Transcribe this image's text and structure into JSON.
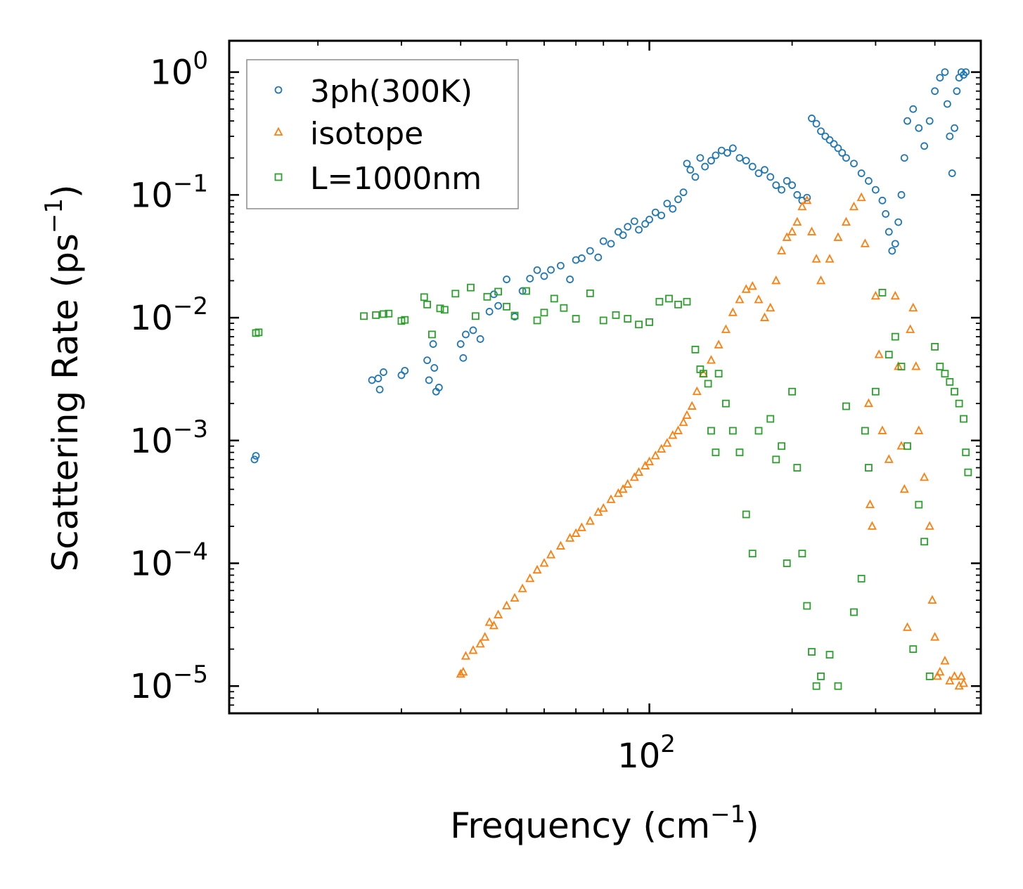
{
  "chart_data": {
    "type": "scatter",
    "title": "",
    "xlabel": "Frequency (cm",
    "xlabel_sup": "−1",
    "xlabel_close": ")",
    "ylabel": "Scattering Rate (ps",
    "ylabel_sup": "−1",
    "ylabel_close": ")",
    "xscale": "log",
    "yscale": "log",
    "xlim": [
      13,
      500
    ],
    "ylim": [
      6e-06,
      1.8
    ],
    "grid": false,
    "legend_position": "top-left",
    "x_ticks": [
      {
        "value": 100,
        "base": "10",
        "exp": "2"
      }
    ],
    "y_ticks": [
      {
        "value": 1,
        "base": "10",
        "exp": "0"
      },
      {
        "value": 0.1,
        "base": "10",
        "exp": "−1"
      },
      {
        "value": 0.01,
        "base": "10",
        "exp": "−2"
      },
      {
        "value": 0.001,
        "base": "10",
        "exp": "−3"
      },
      {
        "value": 0.0001,
        "base": "10",
        "exp": "−4"
      },
      {
        "value": 1e-05,
        "base": "10",
        "exp": "−5"
      }
    ],
    "series": [
      {
        "name": "3ph(300K)",
        "marker": "circle",
        "color": "#1f77b4",
        "points": [
          [
            14.7,
            0.0007
          ],
          [
            14.8,
            0.00075
          ],
          [
            26.0,
            0.0031
          ],
          [
            26.8,
            0.0032
          ],
          [
            27.0,
            0.0026
          ],
          [
            27.5,
            0.0036
          ],
          [
            30.0,
            0.0034
          ],
          [
            30.5,
            0.0037
          ],
          [
            34.0,
            0.0045
          ],
          [
            34.3,
            0.0031
          ],
          [
            35.0,
            0.0061
          ],
          [
            35.2,
            0.0039
          ],
          [
            35.5,
            0.0025
          ],
          [
            36.0,
            0.0027
          ],
          [
            40.0,
            0.0061
          ],
          [
            40.5,
            0.0047
          ],
          [
            41.0,
            0.0073
          ],
          [
            42.5,
            0.0079
          ],
          [
            44.0,
            0.0067
          ],
          [
            46.0,
            0.0112
          ],
          [
            47.0,
            0.0155
          ],
          [
            48.0,
            0.0125
          ],
          [
            50.0,
            0.0205
          ],
          [
            52.0,
            0.0102
          ],
          [
            54.0,
            0.0165
          ],
          [
            56.0,
            0.0208
          ],
          [
            58.0,
            0.0244
          ],
          [
            60.0,
            0.0218
          ],
          [
            62.0,
            0.0245
          ],
          [
            65.0,
            0.0265
          ],
          [
            68.0,
            0.0205
          ],
          [
            70.0,
            0.0295
          ],
          [
            72.0,
            0.0305
          ],
          [
            75.0,
            0.035
          ],
          [
            78.0,
            0.031
          ],
          [
            80.0,
            0.042
          ],
          [
            83.0,
            0.04
          ],
          [
            86.0,
            0.05
          ],
          [
            88.0,
            0.047
          ],
          [
            90.0,
            0.055
          ],
          [
            93.0,
            0.061
          ],
          [
            95.0,
            0.052
          ],
          [
            98.0,
            0.058
          ],
          [
            100.0,
            0.063
          ],
          [
            103.0,
            0.072
          ],
          [
            106.0,
            0.068
          ],
          [
            109.0,
            0.085
          ],
          [
            112.0,
            0.077
          ],
          [
            115.0,
            0.092
          ],
          [
            118.0,
            0.105
          ],
          [
            120.0,
            0.18
          ],
          [
            122.0,
            0.16
          ],
          [
            125.0,
            0.14
          ],
          [
            128.0,
            0.2
          ],
          [
            131.0,
            0.17
          ],
          [
            135.0,
            0.19
          ],
          [
            138.0,
            0.21
          ],
          [
            142.0,
            0.23
          ],
          [
            146.0,
            0.22
          ],
          [
            150.0,
            0.24
          ],
          [
            155.0,
            0.2
          ],
          [
            160.0,
            0.19
          ],
          [
            165.0,
            0.17
          ],
          [
            170.0,
            0.15
          ],
          [
            175.0,
            0.16
          ],
          [
            180.0,
            0.14
          ],
          [
            185.0,
            0.12
          ],
          [
            190.0,
            0.11
          ],
          [
            195.0,
            0.13
          ],
          [
            200.0,
            0.12
          ],
          [
            205.0,
            0.1
          ],
          [
            210.0,
            0.09
          ],
          [
            215.0,
            0.095
          ],
          [
            220.0,
            0.42
          ],
          [
            225.0,
            0.38
          ],
          [
            230.0,
            0.33
          ],
          [
            235.0,
            0.3
          ],
          [
            240.0,
            0.28
          ],
          [
            245.0,
            0.26
          ],
          [
            250.0,
            0.24
          ],
          [
            255.0,
            0.22
          ],
          [
            260.0,
            0.2
          ],
          [
            270.0,
            0.18
          ],
          [
            280.0,
            0.15
          ],
          [
            290.0,
            0.13
          ],
          [
            300.0,
            0.11
          ],
          [
            310.0,
            0.09
          ],
          [
            315.0,
            0.07
          ],
          [
            320.0,
            0.05
          ],
          [
            325.0,
            0.035
          ],
          [
            330.0,
            0.04
          ],
          [
            335.0,
            0.06
          ],
          [
            340.0,
            0.1
          ],
          [
            345.0,
            0.2
          ],
          [
            350.0,
            0.4
          ],
          [
            360.0,
            0.5
          ],
          [
            370.0,
            0.35
          ],
          [
            380.0,
            0.25
          ],
          [
            390.0,
            0.4
          ],
          [
            400.0,
            0.7
          ],
          [
            410.0,
            0.9
          ],
          [
            420.0,
            1.0
          ],
          [
            425.0,
            0.55
          ],
          [
            430.0,
            0.3
          ],
          [
            435.0,
            0.15
          ],
          [
            440.0,
            0.35
          ],
          [
            445.0,
            0.7
          ],
          [
            450.0,
            0.9
          ],
          [
            455.0,
            1.0
          ],
          [
            460.0,
            0.95
          ],
          [
            465.0,
            1.0
          ]
        ]
      },
      {
        "name": "isotope",
        "marker": "triangle",
        "color": "#ff7f0e",
        "points": [
          [
            40.0,
            1.25e-05
          ],
          [
            40.5,
            1.3e-05
          ],
          [
            41.0,
            1.75e-05
          ],
          [
            42.5,
            1.95e-05
          ],
          [
            44.0,
            2.2e-05
          ],
          [
            45.0,
            2.5e-05
          ],
          [
            46.0,
            3.3e-05
          ],
          [
            47.0,
            3.1e-05
          ],
          [
            48.0,
            3.8e-05
          ],
          [
            50.0,
            4.5e-05
          ],
          [
            52.0,
            5.2e-05
          ],
          [
            54.0,
            6.2e-05
          ],
          [
            56.0,
            7.5e-05
          ],
          [
            58.0,
            8.8e-05
          ],
          [
            60.0,
            0.0001
          ],
          [
            62.0,
            0.000117
          ],
          [
            65.0,
            0.000138
          ],
          [
            68.0,
            0.00016
          ],
          [
            70.0,
            0.000175
          ],
          [
            72.0,
            0.000195
          ],
          [
            75.0,
            0.00022
          ],
          [
            78.0,
            0.00026
          ],
          [
            80.0,
            0.00028
          ],
          [
            83.0,
            0.00033
          ],
          [
            86.0,
            0.00037
          ],
          [
            88.0,
            0.0004
          ],
          [
            90.0,
            0.00044
          ],
          [
            93.0,
            0.0005
          ],
          [
            95.0,
            0.00055
          ],
          [
            98.0,
            0.00062
          ],
          [
            100.0,
            0.00067
          ],
          [
            103.0,
            0.00075
          ],
          [
            106.0,
            0.00085
          ],
          [
            109.0,
            0.00095
          ],
          [
            112.0,
            0.0011
          ],
          [
            115.0,
            0.0012
          ],
          [
            118.0,
            0.0014
          ],
          [
            120.0,
            0.0016
          ],
          [
            123.0,
            0.0019
          ],
          [
            126.0,
            0.0025
          ],
          [
            130.0,
            0.0035
          ],
          [
            135.0,
            0.0045
          ],
          [
            140.0,
            0.006
          ],
          [
            145.0,
            0.008
          ],
          [
            150.0,
            0.011
          ],
          [
            155.0,
            0.014
          ],
          [
            160.0,
            0.017
          ],
          [
            165.0,
            0.018
          ],
          [
            170.0,
            0.014
          ],
          [
            175.0,
            0.01
          ],
          [
            180.0,
            0.012
          ],
          [
            185.0,
            0.02
          ],
          [
            190.0,
            0.035
          ],
          [
            195.0,
            0.045
          ],
          [
            200.0,
            0.05
          ],
          [
            205.0,
            0.06
          ],
          [
            210.0,
            0.08
          ],
          [
            215.0,
            0.09
          ],
          [
            220.0,
            0.05
          ],
          [
            225.0,
            0.03
          ],
          [
            230.0,
            0.02
          ],
          [
            240.0,
            0.03
          ],
          [
            250.0,
            0.045
          ],
          [
            260.0,
            0.06
          ],
          [
            270.0,
            0.08
          ],
          [
            280.0,
            0.095
          ],
          [
            285.0,
            0.04
          ],
          [
            290.0,
            0.002
          ],
          [
            292.0,
            0.0003
          ],
          [
            295.0,
            0.0002
          ],
          [
            300.0,
            0.015
          ],
          [
            305.0,
            0.005
          ],
          [
            310.0,
            0.0012
          ],
          [
            320.0,
            0.0007
          ],
          [
            330.0,
            0.015
          ],
          [
            335.0,
            0.004
          ],
          [
            340.0,
            0.0009
          ],
          [
            345.0,
            0.0004
          ],
          [
            350.0,
            3e-05
          ],
          [
            355.0,
            0.008
          ],
          [
            360.0,
            0.012
          ],
          [
            365.0,
            0.004
          ],
          [
            370.0,
            0.0012
          ],
          [
            380.0,
            0.0005
          ],
          [
            390.0,
            0.0002
          ],
          [
            395.0,
            5e-05
          ],
          [
            400.0,
            2.5e-05
          ],
          [
            405.0,
            1.2e-05
          ],
          [
            410.0,
            1.3e-05
          ],
          [
            420.0,
            1.6e-05
          ],
          [
            430.0,
            1.1e-05
          ],
          [
            440.0,
            1.2e-05
          ],
          [
            450.0,
            1e-05
          ],
          [
            455.0,
            1.2e-05
          ],
          [
            460.0,
            1.05e-05
          ]
        ]
      },
      {
        "name": "L=1000nm",
        "marker": "square",
        "color": "#2ca02c",
        "points": [
          [
            14.8,
            0.0075
          ],
          [
            15.0,
            0.0076
          ],
          [
            25.0,
            0.0103
          ],
          [
            26.5,
            0.0105
          ],
          [
            27.5,
            0.0107
          ],
          [
            28.2,
            0.0108
          ],
          [
            30.0,
            0.0094
          ],
          [
            30.5,
            0.0096
          ],
          [
            33.5,
            0.0147
          ],
          [
            34.0,
            0.0128
          ],
          [
            34.8,
            0.0073
          ],
          [
            36.2,
            0.0119
          ],
          [
            37.0,
            0.0116
          ],
          [
            39.0,
            0.0157
          ],
          [
            42.0,
            0.0176
          ],
          [
            43.0,
            0.0103
          ],
          [
            45.5,
            0.0148
          ],
          [
            48.0,
            0.0163
          ],
          [
            50.0,
            0.0123
          ],
          [
            52.0,
            0.0104
          ],
          [
            55.0,
            0.0165
          ],
          [
            58.0,
            0.0095
          ],
          [
            60.0,
            0.011
          ],
          [
            63.0,
            0.0143
          ],
          [
            66.0,
            0.012
          ],
          [
            70.0,
            0.0098
          ],
          [
            75.0,
            0.0158
          ],
          [
            80.0,
            0.0095
          ],
          [
            85.0,
            0.0105
          ],
          [
            90.0,
            0.0098
          ],
          [
            95.0,
            0.0088
          ],
          [
            100.0,
            0.0092
          ],
          [
            105.0,
            0.0135
          ],
          [
            110.0,
            0.0143
          ],
          [
            115.0,
            0.0128
          ],
          [
            120.0,
            0.0135
          ],
          [
            125.0,
            0.0055
          ],
          [
            128.0,
            0.0038
          ],
          [
            130.0,
            0.0035
          ],
          [
            133.0,
            0.0029
          ],
          [
            135.0,
            0.0012
          ],
          [
            138.0,
            0.0008
          ],
          [
            140.0,
            0.0035
          ],
          [
            145.0,
            0.002
          ],
          [
            150.0,
            0.0012
          ],
          [
            155.0,
            0.0008
          ],
          [
            160.0,
            0.00025
          ],
          [
            165.0,
            0.00012
          ],
          [
            170.0,
            0.0012
          ],
          [
            180.0,
            0.0015
          ],
          [
            185.0,
            0.0007
          ],
          [
            190.0,
            0.0009
          ],
          [
            195.0,
            0.0001
          ],
          [
            200.0,
            0.0025
          ],
          [
            205.0,
            0.0006
          ],
          [
            210.0,
            0.00012
          ],
          [
            215.0,
            4.5e-05
          ],
          [
            220.0,
            1.9e-05
          ],
          [
            225.0,
            1e-05
          ],
          [
            230.0,
            1.2e-05
          ],
          [
            240.0,
            1.8e-05
          ],
          [
            250.0,
            1e-05
          ],
          [
            260.0,
            0.0019
          ],
          [
            270.0,
            4e-05
          ],
          [
            280.0,
            7.5e-05
          ],
          [
            285.0,
            0.0012
          ],
          [
            290.0,
            0.0006
          ],
          [
            300.0,
            0.0025
          ],
          [
            310.0,
            0.016
          ],
          [
            320.0,
            0.005
          ],
          [
            330.0,
            0.007
          ],
          [
            340.0,
            0.004
          ],
          [
            350.0,
            0.0009
          ],
          [
            360.0,
            2e-05
          ],
          [
            370.0,
            0.0003
          ],
          [
            380.0,
            0.00015
          ],
          [
            390.0,
            1.2e-05
          ],
          [
            400.0,
            0.0058
          ],
          [
            410.0,
            0.004
          ],
          [
            420.0,
            0.0035
          ],
          [
            430.0,
            0.003
          ],
          [
            440.0,
            0.0025
          ],
          [
            450.0,
            0.002
          ],
          [
            460.0,
            0.0015
          ],
          [
            465.0,
            0.0008
          ],
          [
            470.0,
            0.00055
          ]
        ]
      }
    ]
  }
}
